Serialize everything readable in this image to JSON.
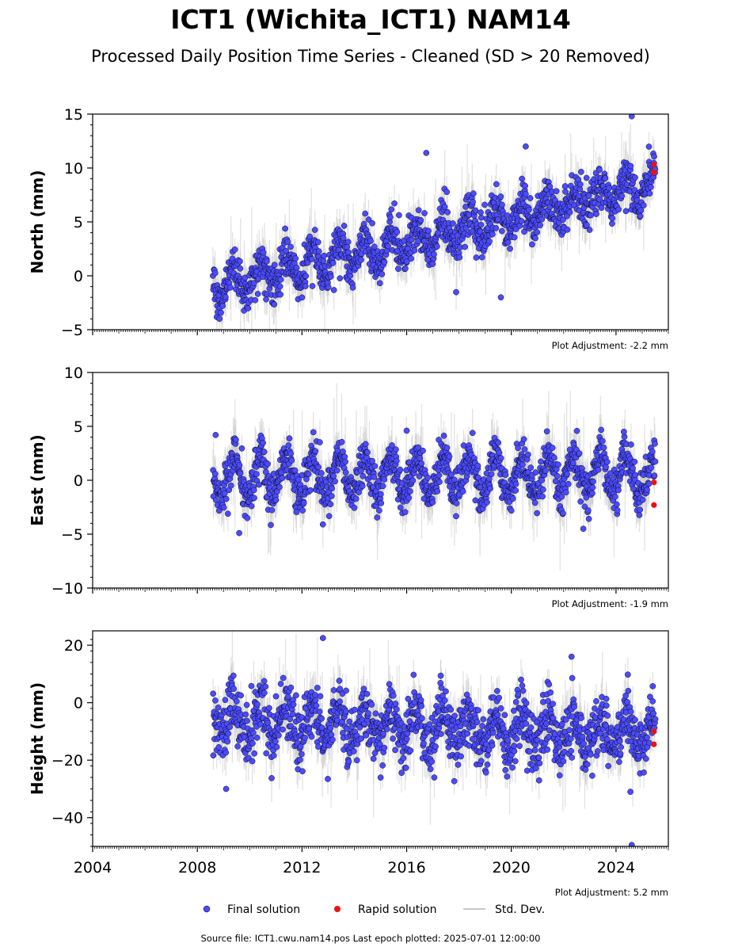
{
  "header": {
    "title": "ICT1 (Wichita_ICT1) NAM14",
    "subtitle": "Processed Daily Position Time Series - Cleaned (SD > 20 Removed)"
  },
  "colors": {
    "final": "#4b4bff",
    "rapid": "#ee1111",
    "std": "#c8c8c8",
    "edge": "#000000"
  },
  "chart_data": {
    "type": "scatter",
    "x_range": [
      2004,
      2026
    ],
    "x_ticks": [
      2004,
      2008,
      2012,
      2016,
      2020,
      2024
    ],
    "x_tick_labels": [
      "2004",
      "2008",
      "2012",
      "2016",
      "2020",
      "2024"
    ],
    "data_start": 2008.6,
    "data_end": 2025.5,
    "panels": [
      {
        "name": "north",
        "ylabel": "North (mm)",
        "ylim": [
          -5,
          15
        ],
        "yticks": [
          -5,
          0,
          5,
          10,
          15
        ],
        "ytick_labels": [
          "−5",
          "0",
          "5",
          "10",
          "15"
        ],
        "adjustment": "Plot Adjustment: -2.2 mm",
        "trend": {
          "start": -1.0,
          "end": 8.5
        },
        "seasonal_amplitude": 1.3,
        "noise": 1.0,
        "std_dev_halfwidth": 1.5,
        "rapid_solutions": [
          {
            "x": 2025.45,
            "y": 10.3
          },
          {
            "x": 2025.45,
            "y": 9.6
          }
        ],
        "outliers": [
          {
            "x": 2024.6,
            "y": 14.8
          },
          {
            "x": 2020.55,
            "y": 12.0
          },
          {
            "x": 2016.75,
            "y": 11.4
          },
          {
            "x": 2019.6,
            "y": -2.0
          },
          {
            "x": 2016.8,
            "y": 1.5
          }
        ]
      },
      {
        "name": "east",
        "ylabel": "East (mm)",
        "ylim": [
          -10,
          10
        ],
        "yticks": [
          -10,
          -5,
          0,
          5,
          10
        ],
        "ytick_labels": [
          "−10",
          "−5",
          "0",
          "5",
          "10"
        ],
        "adjustment": "Plot Adjustment: -1.9 mm",
        "trend": {
          "start": 0.2,
          "end": 0.5
        },
        "seasonal_amplitude": 1.8,
        "noise": 1.0,
        "std_dev_halfwidth": 1.6,
        "rapid_solutions": [
          {
            "x": 2025.45,
            "y": -0.2
          },
          {
            "x": 2025.45,
            "y": -2.3
          }
        ],
        "outliers": [
          {
            "x": 2008.7,
            "y": 4.2
          },
          {
            "x": 2009.6,
            "y": -4.9
          },
          {
            "x": 2022.75,
            "y": -4.5
          },
          {
            "x": 2024.3,
            "y": 4.5
          },
          {
            "x": 2016.0,
            "y": 4.6
          }
        ]
      },
      {
        "name": "height",
        "ylabel": "Height (mm)",
        "ylim": [
          -50,
          25
        ],
        "yticks": [
          -40,
          -20,
          0,
          20
        ],
        "ytick_labels": [
          "−40",
          "−20",
          "0",
          "20"
        ],
        "adjustment": "Plot Adjustment: 5.2 mm",
        "trend": {
          "start": -6,
          "end": -12
        },
        "seasonal_amplitude": 6,
        "noise": 5.0,
        "std_dev_halfwidth": 6,
        "rapid_solutions": [
          {
            "x": 2025.45,
            "y": -10.0
          },
          {
            "x": 2025.45,
            "y": -14.5
          }
        ],
        "outliers": [
          {
            "x": 2012.8,
            "y": 22.5
          },
          {
            "x": 2024.6,
            "y": -49.5
          },
          {
            "x": 2024.55,
            "y": -31
          },
          {
            "x": 2025.4,
            "y": 0.5
          },
          {
            "x": 2022.3,
            "y": 16
          },
          {
            "x": 2009.1,
            "y": -30
          }
        ]
      }
    ]
  },
  "legend": {
    "final_label": "Final solution",
    "rapid_label": "Rapid solution",
    "std_label": "Std. Dev."
  },
  "footer": {
    "source": "Source file: ICT1.cwu.nam14.pos  Last epoch plotted: 2025-07-01 12:00:00"
  }
}
